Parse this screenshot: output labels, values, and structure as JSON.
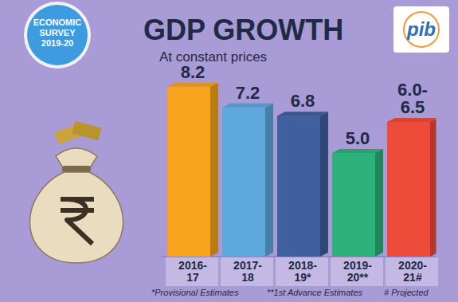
{
  "chart_data": {
    "type": "bar",
    "title": "GDP GROWTH",
    "subtitle": "At constant prices",
    "badge": "ECONOMIC SURVEY 2019-20",
    "logo": "pib",
    "categories": [
      "2016-17",
      "2017-18",
      "2018-19*",
      "2019-20**",
      "2020-21#"
    ],
    "values": [
      8.2,
      7.2,
      6.8,
      5.0,
      6.5
    ],
    "value_labels": [
      "8.2",
      "7.2",
      "6.8",
      "5.0",
      "6.0-6.5"
    ],
    "colors": [
      "#f7a41c",
      "#5ea9dc",
      "#3f5f9e",
      "#2db27b",
      "#ee4b3b"
    ],
    "ylim": [
      0,
      9
    ],
    "grid": false,
    "data_labels": true,
    "tick_labels": false,
    "notes": [
      "*Provisional Estimates",
      "**1st Advance Estimates",
      "# Projected"
    ]
  }
}
